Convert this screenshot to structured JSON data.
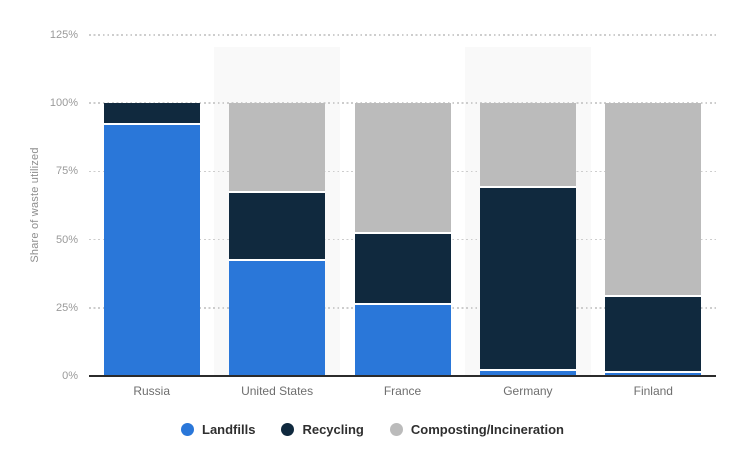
{
  "chart_data": {
    "type": "bar",
    "stacked": true,
    "title": "",
    "ylabel": "Share of waste utilized",
    "xlabel": "",
    "ylim": [
      0,
      125
    ],
    "yticks": [
      "0%",
      "25%",
      "50%",
      "75%",
      "100%",
      "125%"
    ],
    "grid": "dotted horizontal gridlines",
    "legend_position": "bottom",
    "highlight_band_columns": [
      1,
      3
    ],
    "highlight_band_color": "#f9f9f9",
    "categories": [
      "Russia",
      "United States",
      "France",
      "Germany",
      "Finland"
    ],
    "series": [
      {
        "name": "Landfills",
        "color": "#2a77d9",
        "values": [
          92,
          42,
          26,
          2,
          1
        ]
      },
      {
        "name": "Recycling",
        "color": "#10293e",
        "values": [
          8,
          25,
          26,
          67,
          28
        ]
      },
      {
        "name": "Composting/Incineration",
        "color": "#bbbbbb",
        "values": [
          0,
          33,
          48,
          31,
          71
        ]
      }
    ],
    "axis_line_color": "#2b2b2b",
    "gridline_color": "#cdcdcd",
    "tick_label_color": "#9a9a9a",
    "category_label_color": "#6e6e6e"
  }
}
